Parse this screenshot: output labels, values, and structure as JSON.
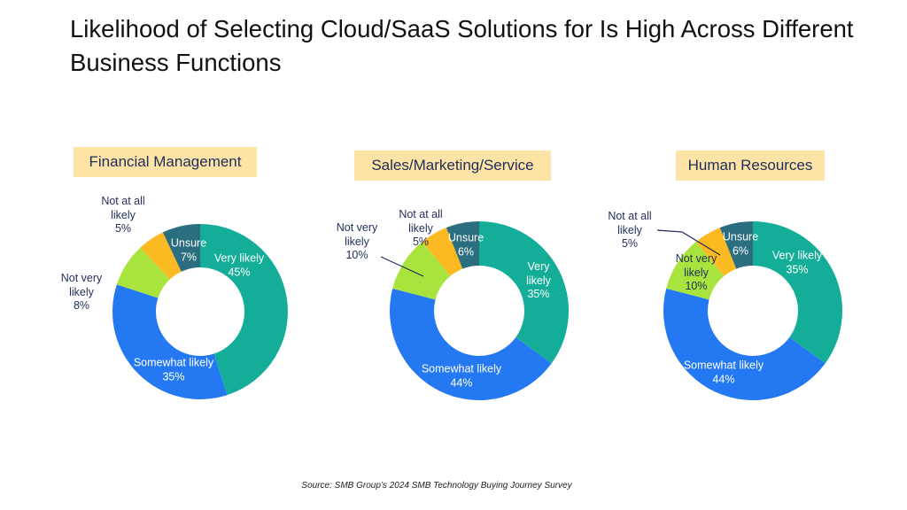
{
  "title": "Likelihood of Selecting Cloud/SaaS Solutions for Is High Across Different Business Functions",
  "source": "Source: SMB Group’s 2024 SMB Technology Buying Journey Survey",
  "colors": {
    "Very likely": "#14AE98",
    "Somewhat likely": "#2479F3",
    "Not very likely": "#A9E43E",
    "Not at all likely": "#FBBA22",
    "Unsure": "#2A6E80"
  },
  "chart_data": [
    {
      "type": "pie",
      "title": "Financial Management",
      "categories": [
        "Very likely",
        "Somewhat likely",
        "Not very likely",
        "Not at all likely",
        "Unsure"
      ],
      "labels": [
        "Very likely",
        "Somewhat likely",
        "Not very likely",
        "Not at all likely",
        "Unsure"
      ],
      "values": [
        45,
        35,
        8,
        5,
        7
      ],
      "value_labels": [
        "45%",
        "35%",
        "8%",
        "5%",
        "7%"
      ]
    },
    {
      "type": "pie",
      "title": "Sales/Marketing/Service",
      "categories": [
        "Very likely",
        "Somewhat likely",
        "Not very likely",
        "Not at all likely",
        "Unsure"
      ],
      "labels": [
        "Very likely",
        "Somewhat likely",
        "Not very likely",
        "Not at all likely",
        "Unsure"
      ],
      "values": [
        35,
        44,
        10,
        5,
        6
      ],
      "value_labels": [
        "35%",
        "44%",
        "10%",
        "5%",
        "6%"
      ]
    },
    {
      "type": "pie",
      "title": "Human Resources",
      "categories": [
        "Very likely",
        "Somewhat likely",
        "Not very likely",
        "Not at all likely",
        "Unsure"
      ],
      "labels": [
        "Very likely",
        "Somewhat likely",
        "Not very likely",
        "Not at all likely",
        "Unsure"
      ],
      "values": [
        35,
        44,
        10,
        5,
        6
      ],
      "value_labels": [
        "35%",
        "44%",
        "10%",
        "5%",
        "6%"
      ]
    }
  ]
}
